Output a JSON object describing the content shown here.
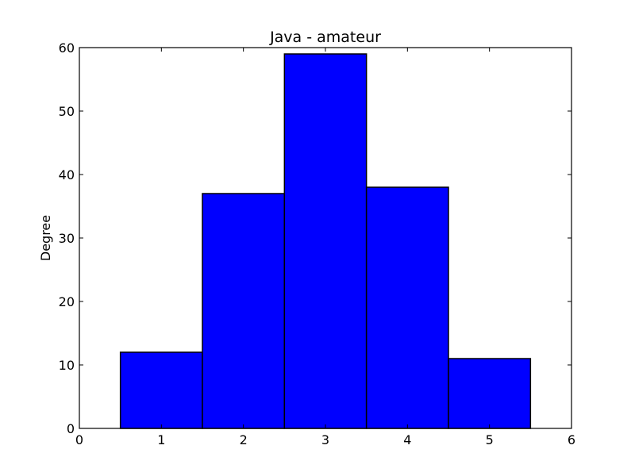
{
  "chart_data": {
    "type": "bar",
    "title": "Java - amateur",
    "xlabel": "",
    "ylabel": "Degree",
    "xlim": [
      0,
      6
    ],
    "ylim": [
      0,
      60
    ],
    "xticks": [
      0,
      1,
      2,
      3,
      4,
      5,
      6
    ],
    "yticks": [
      0,
      10,
      20,
      30,
      40,
      50,
      60
    ],
    "bar_width": 1,
    "grid": false,
    "bars": [
      {
        "x": 1,
        "value": 12
      },
      {
        "x": 2,
        "value": 37
      },
      {
        "x": 3,
        "value": 59
      },
      {
        "x": 4,
        "value": 38
      },
      {
        "x": 5,
        "value": 11
      }
    ],
    "colors": {
      "bar_fill": "#0000ff",
      "bar_edge": "#000000",
      "axis": "#000000"
    }
  }
}
